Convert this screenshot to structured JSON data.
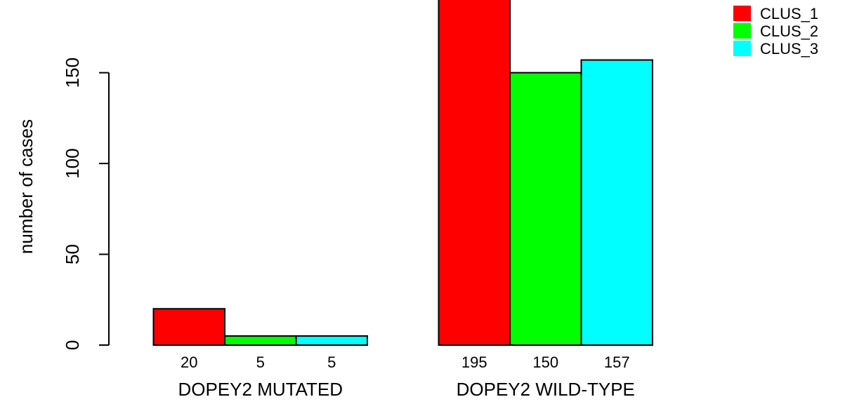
{
  "chart_data": {
    "type": "bar",
    "ylabel": "number of cases",
    "ylim": [
      0,
      195
    ],
    "yticks": [
      0,
      50,
      100,
      150
    ],
    "categories": [
      "DOPEY2 MUTATED",
      "DOPEY2 WILD-TYPE"
    ],
    "series": [
      {
        "name": "CLUS_1",
        "color": "#ff0000",
        "values": [
          20,
          195
        ]
      },
      {
        "name": "CLUS_2",
        "color": "#00ff00",
        "values": [
          5,
          150
        ]
      },
      {
        "name": "CLUS_3",
        "color": "#00ffff",
        "values": [
          5,
          157
        ]
      }
    ],
    "value_labels": [
      [
        "20",
        "5",
        "5"
      ],
      [
        "195",
        "150",
        "157"
      ]
    ],
    "legend_position": "top-right",
    "grid": false
  }
}
